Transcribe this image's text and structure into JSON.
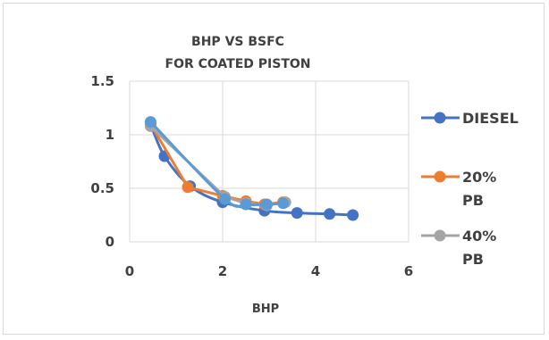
{
  "chart_data": {
    "type": "scatter",
    "title": "BHP VS BSFC",
    "subtitle": "FOR COATED PISTON",
    "xlabel": "BHP",
    "ylabel": "",
    "xlim": [
      0,
      6
    ],
    "ylim": [
      0,
      1.5
    ],
    "x_ticks": [
      "0",
      "2",
      "4",
      "6"
    ],
    "y_ticks": [
      "0",
      "0.5",
      "1",
      "1.5"
    ],
    "grid": true,
    "legend_position": "right",
    "series": [
      {
        "name": "DIESEL",
        "legend_lines": [
          "DIESEL"
        ],
        "color": "#4472c4",
        "points": [
          [
            0.45,
            1.1
          ],
          [
            0.75,
            0.8
          ],
          [
            1.3,
            0.52
          ],
          [
            2.0,
            0.37
          ],
          [
            2.9,
            0.29
          ],
          [
            3.6,
            0.27
          ],
          [
            4.3,
            0.26
          ],
          [
            4.8,
            0.25
          ]
        ],
        "smooth": true
      },
      {
        "name": "20% PB",
        "legend_lines": [
          "20%",
          "PB"
        ],
        "color": "#ed7d31",
        "points": [
          [
            0.45,
            1.1
          ],
          [
            1.25,
            0.51
          ],
          [
            2.0,
            0.43
          ],
          [
            2.5,
            0.38
          ],
          [
            2.9,
            0.35
          ],
          [
            3.3,
            0.37
          ]
        ],
        "smooth": false
      },
      {
        "name": "40% PB",
        "legend_lines": [
          "40%",
          "PB"
        ],
        "color": "#a5a5a5",
        "points": [
          [
            0.45,
            1.08
          ],
          [
            2.05,
            0.42
          ],
          [
            2.5,
            0.36
          ],
          [
            2.95,
            0.34
          ],
          [
            3.35,
            0.37
          ]
        ],
        "smooth": false
      },
      {
        "name": "",
        "legend_lines": [],
        "color": "#5b9bd5",
        "points": [
          [
            0.45,
            1.12
          ],
          [
            2.05,
            0.4
          ],
          [
            2.5,
            0.35
          ],
          [
            2.95,
            0.35
          ],
          [
            3.3,
            0.36
          ]
        ],
        "smooth": true
      }
    ]
  }
}
